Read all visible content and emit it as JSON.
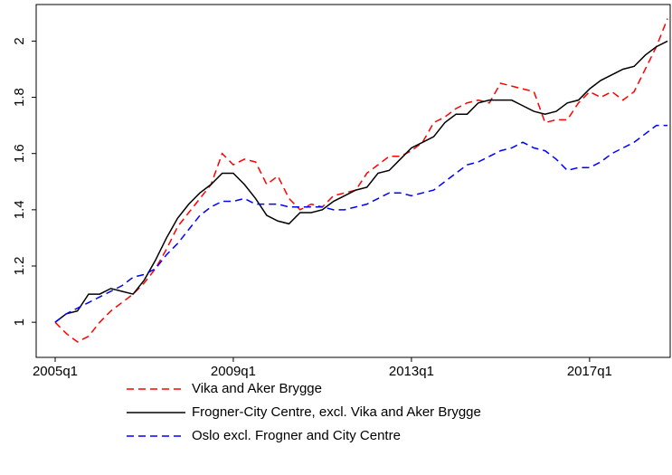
{
  "chart_data": {
    "type": "line",
    "categories": [
      "2005q1",
      null,
      null,
      null,
      null,
      null,
      null,
      null,
      null,
      null,
      null,
      null,
      null,
      null,
      null,
      null,
      "2009q1",
      null,
      null,
      null,
      null,
      null,
      null,
      null,
      null,
      null,
      null,
      null,
      null,
      null,
      null,
      null,
      "2013q1",
      null,
      null,
      null,
      null,
      null,
      null,
      null,
      null,
      null,
      null,
      null,
      null,
      null,
      null,
      null,
      "2017q1",
      null,
      null,
      null,
      null,
      null,
      null,
      null
    ],
    "series": [
      {
        "name": "Vika and Aker Brygge",
        "color": "#ff0000",
        "dashed": true,
        "values": [
          1.0,
          0.96,
          0.93,
          0.95,
          1.0,
          1.04,
          1.07,
          1.1,
          1.14,
          1.19,
          1.26,
          1.34,
          1.39,
          1.44,
          1.49,
          1.6,
          1.56,
          1.58,
          1.57,
          1.49,
          1.52,
          1.44,
          1.4,
          1.42,
          1.41,
          1.45,
          1.46,
          1.47,
          1.53,
          1.56,
          1.59,
          1.59,
          1.61,
          1.64,
          1.71,
          1.73,
          1.76,
          1.78,
          1.79,
          1.78,
          1.85,
          1.84,
          1.83,
          1.82,
          1.71,
          1.72,
          1.72,
          1.78,
          1.82,
          1.8,
          1.82,
          1.79,
          1.82,
          1.9,
          1.98,
          2.08
        ]
      },
      {
        "name": "Frogner-City Centre, excl. Vika and Aker Brygge",
        "color": "#000000",
        "dashed": false,
        "values": [
          1.0,
          1.03,
          1.04,
          1.1,
          1.1,
          1.12,
          1.11,
          1.1,
          1.15,
          1.22,
          1.3,
          1.37,
          1.42,
          1.46,
          1.49,
          1.53,
          1.53,
          1.49,
          1.44,
          1.38,
          1.36,
          1.35,
          1.39,
          1.39,
          1.4,
          1.43,
          1.45,
          1.47,
          1.48,
          1.53,
          1.54,
          1.58,
          1.62,
          1.64,
          1.66,
          1.71,
          1.74,
          1.74,
          1.78,
          1.79,
          1.79,
          1.79,
          1.77,
          1.75,
          1.74,
          1.75,
          1.78,
          1.79,
          1.83,
          1.86,
          1.88,
          1.9,
          1.91,
          1.95,
          1.98,
          2.0
        ]
      },
      {
        "name": "Oslo excl. Frogner and City Centre",
        "color": "#0000ff",
        "dashed": true,
        "values": [
          1.0,
          1.03,
          1.05,
          1.07,
          1.09,
          1.11,
          1.13,
          1.16,
          1.17,
          1.19,
          1.24,
          1.28,
          1.33,
          1.38,
          1.41,
          1.43,
          1.43,
          1.44,
          1.42,
          1.42,
          1.42,
          1.41,
          1.41,
          1.41,
          1.41,
          1.4,
          1.4,
          1.41,
          1.42,
          1.44,
          1.46,
          1.46,
          1.45,
          1.46,
          1.47,
          1.5,
          1.53,
          1.56,
          1.57,
          1.59,
          1.61,
          1.62,
          1.64,
          1.62,
          1.61,
          1.58,
          1.54,
          1.55,
          1.55,
          1.57,
          1.6,
          1.62,
          1.64,
          1.67,
          1.7,
          1.7
        ]
      }
    ],
    "ylim": [
      0.875,
      2.13
    ],
    "yticks": [
      1,
      1.2,
      1.4,
      1.6,
      1.8,
      2
    ],
    "grid": false
  }
}
